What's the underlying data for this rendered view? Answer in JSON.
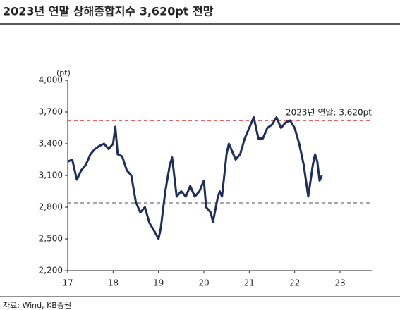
{
  "chart_data": {
    "type": "line",
    "title": "2023년 연말 상해종합지수 3,620pt 전망",
    "y_unit": "(pt)",
    "source": "자료: Wind, KB증권",
    "x": [
      17.0,
      17.1,
      17.2,
      17.3,
      17.4,
      17.5,
      17.6,
      17.7,
      17.8,
      17.9,
      18.0,
      18.05,
      18.1,
      18.2,
      18.3,
      18.4,
      18.5,
      18.6,
      18.7,
      18.8,
      18.9,
      19.0,
      19.05,
      19.15,
      19.25,
      19.3,
      19.4,
      19.5,
      19.6,
      19.7,
      19.8,
      19.9,
      20.0,
      20.05,
      20.15,
      20.2,
      20.3,
      20.35,
      20.4,
      20.5,
      20.55,
      20.6,
      20.7,
      20.8,
      20.9,
      21.0,
      21.1,
      21.2,
      21.3,
      21.4,
      21.5,
      21.6,
      21.7,
      21.8,
      21.9,
      22.0,
      22.1,
      22.2,
      22.3,
      22.35,
      22.4,
      22.45,
      22.5,
      22.55,
      22.6
    ],
    "series": [
      {
        "name": "상해종합지수",
        "color": "#1f2d5a",
        "values": [
          3230,
          3250,
          3060,
          3150,
          3200,
          3300,
          3350,
          3380,
          3400,
          3350,
          3400,
          3560,
          3300,
          3280,
          3150,
          3100,
          2850,
          2750,
          2800,
          2650,
          2580,
          2500,
          2600,
          2950,
          3200,
          3270,
          2900,
          2950,
          2900,
          3000,
          2900,
          2950,
          3050,
          2800,
          2750,
          2660,
          2880,
          2950,
          2900,
          3300,
          3400,
          3350,
          3250,
          3300,
          3450,
          3550,
          3650,
          3450,
          3450,
          3550,
          3580,
          3650,
          3550,
          3600,
          3620,
          3550,
          3400,
          3200,
          2900,
          3050,
          3200,
          3300,
          3230,
          3050,
          3100
        ]
      }
    ],
    "xlim": [
      17,
      23.7
    ],
    "xticks": [
      17,
      18,
      19,
      20,
      21,
      22,
      23
    ],
    "ylim": [
      2200,
      4000
    ],
    "yticks": [
      {
        "value": 2200,
        "label": "2,200"
      },
      {
        "value": 2500,
        "label": "2,500"
      },
      {
        "value": 2800,
        "label": "2,800"
      },
      {
        "value": 3100,
        "label": "3,100"
      },
      {
        "value": 3400,
        "label": "3,400"
      },
      {
        "value": 3700,
        "label": "3,700"
      },
      {
        "value": 4000,
        "label": "4,000"
      }
    ],
    "reference_lines": [
      {
        "value": 3620,
        "color": "#e03030",
        "label": "2023년 연말: 3,620pt"
      },
      {
        "value": 2840,
        "color": "#888888"
      }
    ]
  }
}
